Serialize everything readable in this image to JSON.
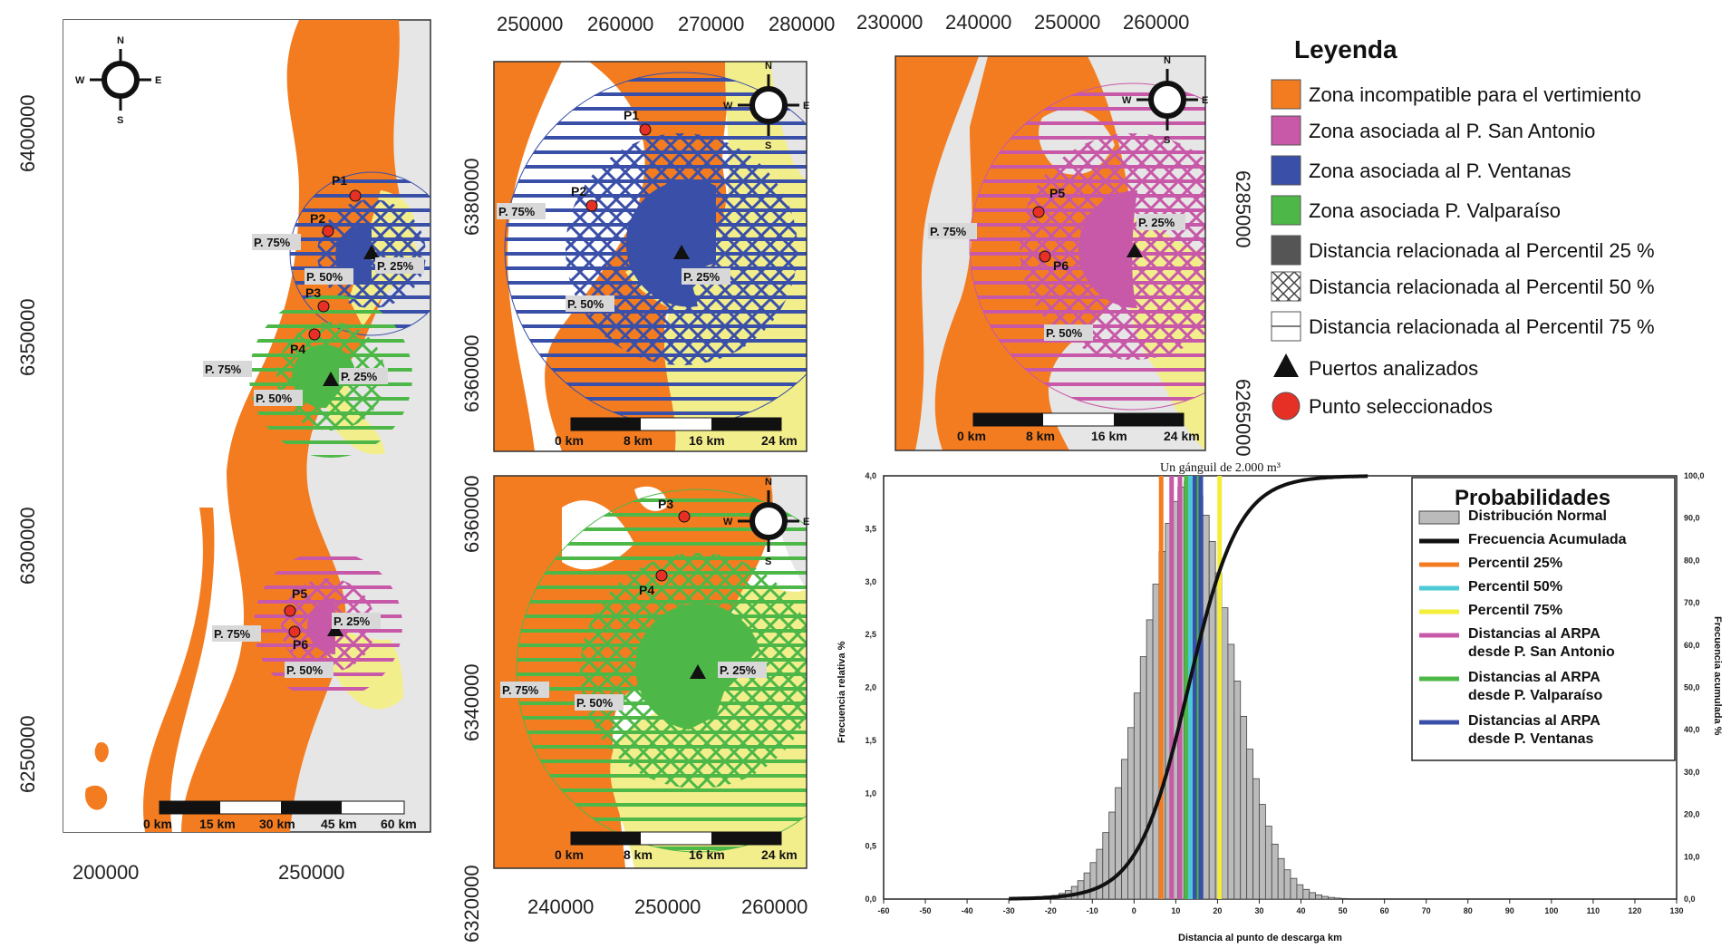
{
  "colors": {
    "orange": "#F47C20",
    "magenta": "#C858A8",
    "blue": "#3A4FA8",
    "green": "#4DB848",
    "yellow": "#F3EE8C",
    "grey": "#E6E6E6",
    "water": "#FFFFFF"
  },
  "maps": {
    "overview": {
      "y_ticks": [
        "6400000",
        "6350000",
        "6300000",
        "6250000"
      ],
      "x_ticks": [
        "200000",
        "250000"
      ],
      "points": [
        "P1",
        "P2",
        "P3",
        "P4",
        "P5",
        "P6"
      ],
      "pct": [
        "P. 75%",
        "P. 50%",
        "P. 25%"
      ],
      "scale": [
        "0 km",
        "15 km",
        "30 km",
        "45 km",
        "60 km"
      ]
    },
    "ventanas": {
      "x_ticks": [
        "250000",
        "260000",
        "270000",
        "280000"
      ],
      "y_ticks": [
        "6380000",
        "6360000"
      ],
      "points": [
        "P1",
        "P2"
      ],
      "pct": [
        "P. 75%",
        "P. 50%",
        "P. 25%"
      ],
      "scale": [
        "0 km",
        "8 km",
        "16 km",
        "24 km"
      ]
    },
    "valparaiso": {
      "x_ticks": [
        "240000",
        "250000",
        "260000"
      ],
      "y_ticks": [
        "6360000",
        "6340000",
        "6320000"
      ],
      "points": [
        "P3",
        "P4"
      ],
      "pct": [
        "P. 75%",
        "P. 50%",
        "P. 25%"
      ],
      "scale": [
        "0 km",
        "8 km",
        "16 km",
        "24 km"
      ]
    },
    "sanantonio": {
      "x_ticks": [
        "230000",
        "240000",
        "250000",
        "260000"
      ],
      "y_ticks": [
        "6285000",
        "6265000"
      ],
      "points": [
        "P5",
        "P6"
      ],
      "pct": [
        "P. 75%",
        "P. 50%",
        "P. 25%"
      ],
      "scale": [
        "0 km",
        "8 km",
        "16 km",
        "24 km"
      ]
    },
    "compass": [
      "N",
      "S",
      "W",
      "E"
    ]
  },
  "legend": {
    "title": "Leyenda",
    "items": [
      "Zona incompatible para el vertimiento",
      "Zona asociada al P. San Antonio",
      "Zona asociada al P. Ventanas",
      "Zona asociada P. Valparaíso",
      "Distancia relacionada al Percentil 25 %",
      "Distancia relacionada al Percentil 50 %",
      "Distancia relacionada al Percentil 75 %",
      "Puertos analizados",
      "Punto seleccionados"
    ]
  },
  "chart_data": {
    "type": "bar",
    "title": "Un gánguil de 2.000 m³",
    "xlabel": "Distancia al punto de descarga km",
    "ylabel": "Frecuencia relativa %",
    "y2label": "Frecuencia acumulada %",
    "xlim": [
      -60,
      130
    ],
    "ylim": [
      0,
      4.0
    ],
    "y2lim": [
      0,
      100
    ],
    "x_ticks": [
      "-60",
      "-50",
      "-40",
      "-30",
      "-20",
      "-10",
      "0",
      "10",
      "20",
      "30",
      "40",
      "50",
      "60",
      "70",
      "80",
      "90",
      "100",
      "110",
      "120",
      "130"
    ],
    "y_ticks": [
      "0,0",
      "0,5",
      "1,0",
      "1,5",
      "2,0",
      "2,5",
      "3,0",
      "3,5",
      "4,0"
    ],
    "y2_ticks": [
      "0,0",
      "10,0",
      "20,0",
      "30,0",
      "40,0",
      "50,0",
      "60,0",
      "70,0",
      "80,0",
      "90,0",
      "100,0"
    ],
    "normal": {
      "mean": 13,
      "sd": 10.3,
      "bin_width": 1.5
    },
    "percentiles": {
      "p25": 6.5,
      "p50": 13.5,
      "p75": 20.5
    },
    "arpa_lines": {
      "san_antonio": [
        9,
        11
      ],
      "valparaiso": [
        12.5,
        15.5
      ],
      "ventanas": [
        14.5,
        16
      ]
    },
    "legend": {
      "title": "Probabilidades",
      "items": [
        {
          "label": [
            "Distribución Normal"
          ],
          "color": "#BBBBBB",
          "kind": "box"
        },
        {
          "label": [
            "Frecuencia Acumulada"
          ],
          "color": "#111111",
          "kind": "line"
        },
        {
          "label": [
            "Percentil 25%"
          ],
          "color": "#F47C20",
          "kind": "line"
        },
        {
          "label": [
            "Percentil 50%"
          ],
          "color": "#4EC9D6",
          "kind": "line"
        },
        {
          "label": [
            "Percentil 75%"
          ],
          "color": "#F2EE3A",
          "kind": "line"
        },
        {
          "label": [
            "Distancias al ARPA",
            "desde P. San Antonio"
          ],
          "color": "#C858A8",
          "kind": "line"
        },
        {
          "label": [
            "Distancias al ARPA",
            "desde P. Valparaíso"
          ],
          "color": "#4DB848",
          "kind": "line"
        },
        {
          "label": [
            "Distancias al ARPA",
            "desde P. Ventanas"
          ],
          "color": "#3A4FA8",
          "kind": "line"
        }
      ]
    }
  }
}
